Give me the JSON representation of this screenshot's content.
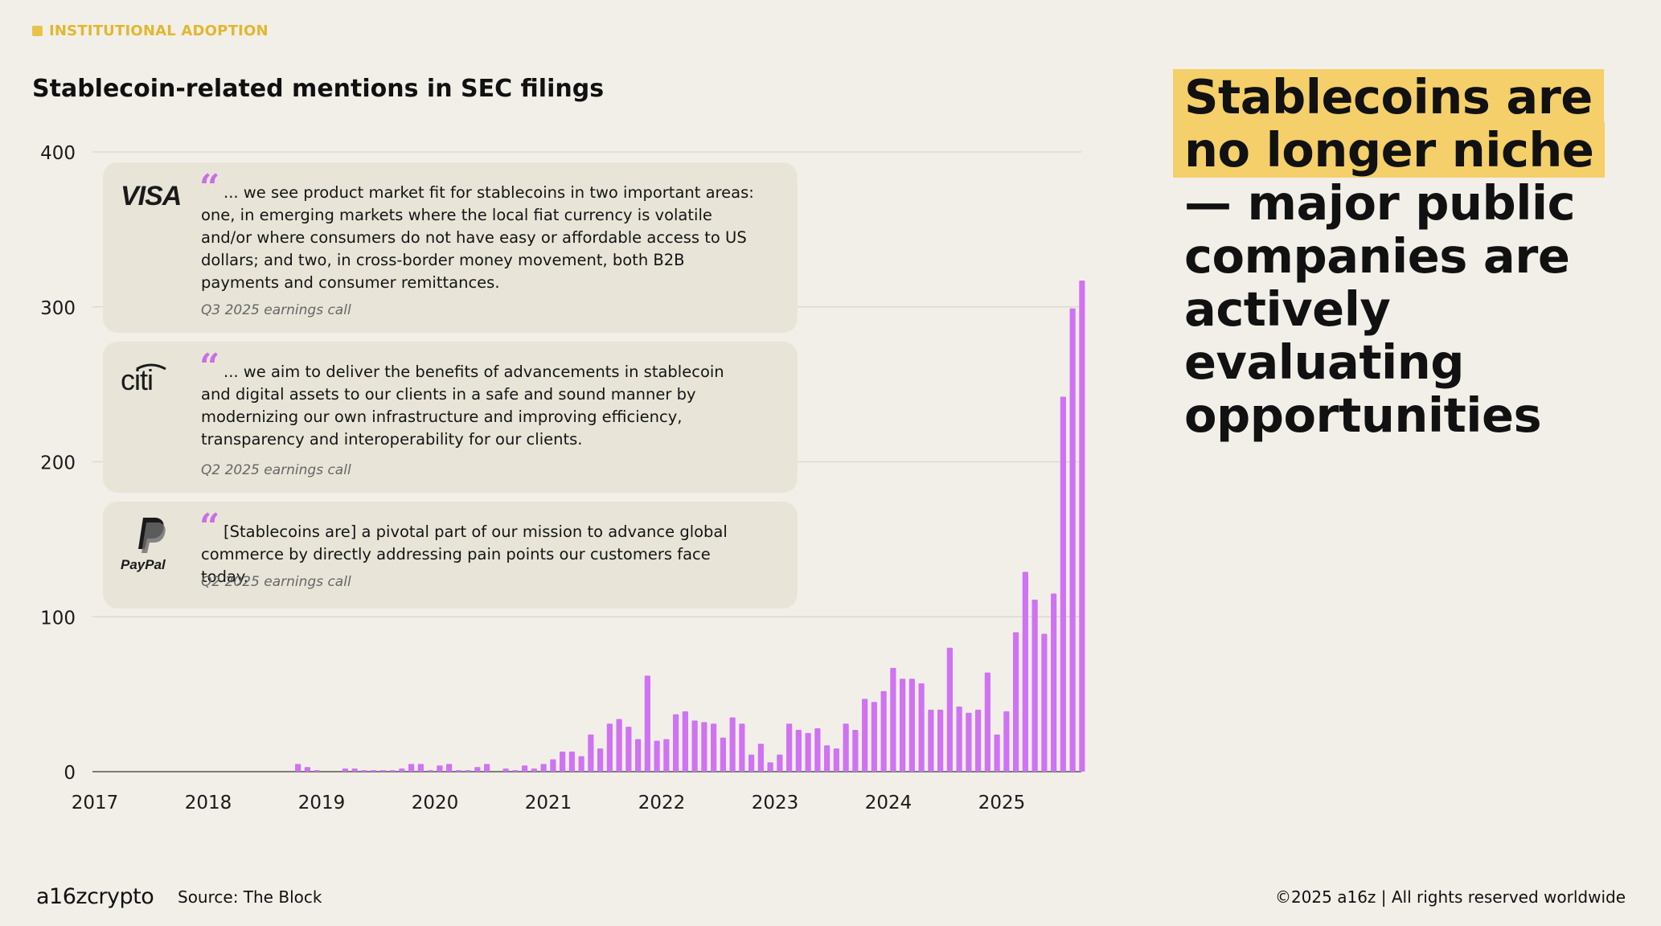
{
  "section_tag": "INSTITUTIONAL ADOPTION",
  "headline": {
    "highlight_line1": "Stablecoins are",
    "highlight_line2": "no longer niche",
    "rest": " — major public companies are actively evaluating opportunities"
  },
  "quotes": [
    {
      "company": "VISA",
      "text": "... we see product market fit for stablecoins in two important areas: one, in emerging markets where the local fiat currency is volatile and/or where consumers do not have easy or affordable access to US dollars; and two, in cross-border money movement, both B2B payments and consumer remittances.",
      "source": "Q3 2025 earnings call"
    },
    {
      "company": "citi",
      "text": "... we aim to deliver the benefits of advancements in stablecoin and digital assets to our clients in a safe and sound manner by modernizing our own infrastructure and improving efficiency, transparency and interoperability for our clients.",
      "source": "Q2 2025 earnings call"
    },
    {
      "company": "PayPal",
      "text": "[Stablecoins are] a pivotal part of our mission to advance global commerce by directly addressing pain points our customers face today.",
      "source": "Q2 2025 earnings call"
    }
  ],
  "footer": {
    "brand": "a16zcrypto",
    "source": "Source: The Block",
    "copyright": "©2025 a16z | All rights reserved worldwide"
  },
  "colors": {
    "bar": "#cf73f2",
    "highlight": "#f4cf6a",
    "tag": "#e1b730",
    "quote_mark": "#c96ee6"
  },
  "chart_data": {
    "type": "bar",
    "title": "Stablecoin-related mentions in SEC filings",
    "xlabel": "",
    "ylabel": "",
    "ylim": [
      0,
      400
    ],
    "yticks": [
      0,
      100,
      200,
      300,
      400
    ],
    "xtick_labels": [
      "2017",
      "2018",
      "2019",
      "2020",
      "2021",
      "2022",
      "2023",
      "2024",
      "2025"
    ],
    "start": "2017-01",
    "frequency": "monthly",
    "values": [
      0,
      0,
      0,
      0,
      0,
      0,
      0,
      0,
      0,
      0,
      0,
      0,
      0,
      0,
      0,
      0,
      0,
      0,
      0,
      0,
      0,
      5,
      3,
      1,
      0,
      0,
      2,
      2,
      1,
      1,
      1,
      1,
      2,
      5,
      5,
      1,
      4,
      5,
      1,
      1,
      3,
      5,
      0,
      2,
      1,
      4,
      2,
      5,
      8,
      13,
      13,
      10,
      24,
      15,
      31,
      34,
      29,
      21,
      62,
      20,
      21,
      37,
      39,
      33,
      32,
      31,
      22,
      35,
      31,
      11,
      18,
      6,
      11,
      31,
      27,
      25,
      28,
      17,
      15,
      31,
      27,
      47,
      45,
      52,
      67,
      60,
      60,
      57,
      40,
      40,
      80,
      42,
      38,
      40,
      64,
      24,
      39,
      90,
      129,
      111,
      89,
      115,
      242,
      299,
      317
    ]
  }
}
